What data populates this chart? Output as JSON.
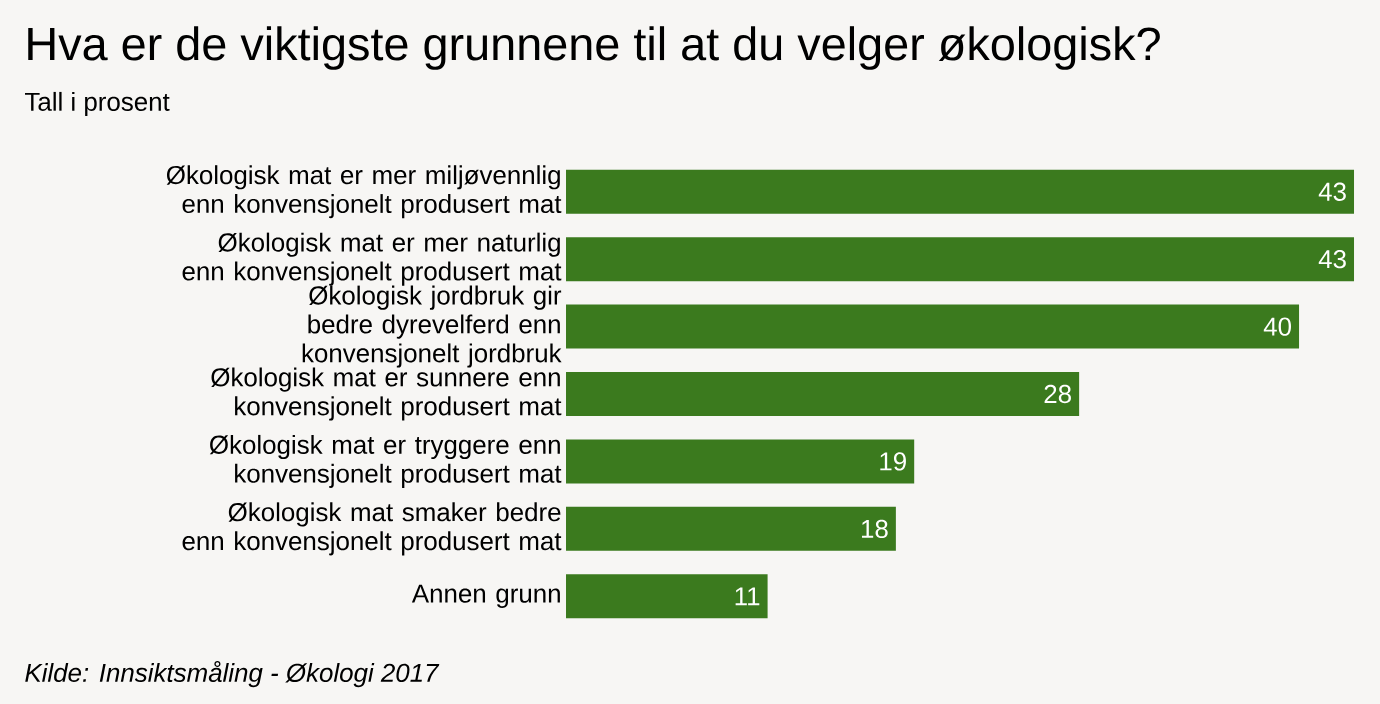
{
  "chart_data": {
    "type": "bar",
    "orientation": "horizontal",
    "title": "Hva er de viktigste grunnene til at du velger økologisk?",
    "subtitle": "Tall i prosent",
    "categories": [
      "Økologisk mat er mer miljøvennlig enn konvensjonelt produsert mat",
      "Økologisk mat er mer naturlig enn konvensjonelt produsert mat",
      "Økologisk jordbruk gir bedre dyrevelferd enn konvensjonelt jordbruk",
      "Økologisk mat er sunnere enn konvensjonelt produsert mat",
      "Økologisk mat er tryggere enn konvensjonelt produsert mat",
      "Økologisk mat smaker bedre enn konvensjonelt produsert mat",
      "Annen grunn"
    ],
    "values": [
      43,
      43,
      40,
      28,
      19,
      18,
      11
    ],
    "color": "#3b7a1e",
    "data_labels": true,
    "annotations": [
      "Kilde: Innsiktsmåling - Økologi 2017"
    ]
  }
}
